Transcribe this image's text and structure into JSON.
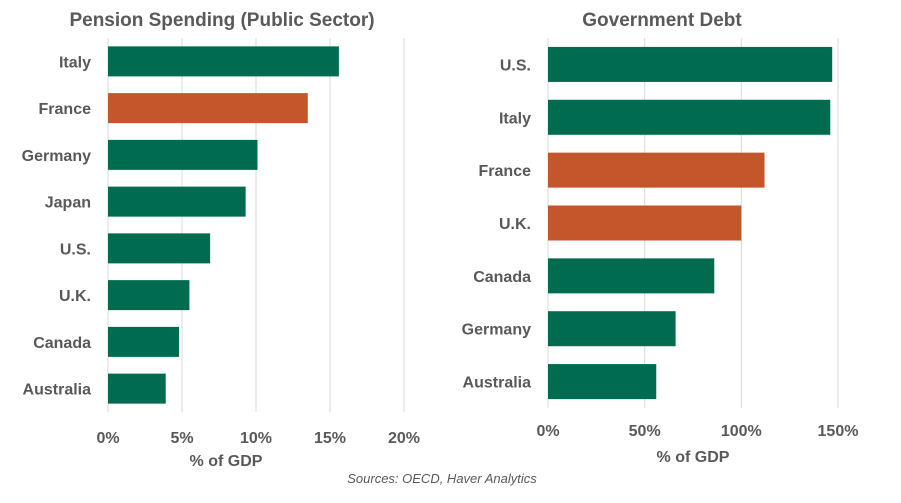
{
  "colors": {
    "default": "#006B4F",
    "highlight": "#C3562A",
    "grid": "#D9D9D9",
    "text": "#595959"
  },
  "source": "Sources: OECD, Haver Analytics",
  "chart_data": [
    {
      "type": "bar",
      "orientation": "horizontal",
      "title": "Pension Spending (Public Sector)",
      "xlabel": "% of GDP",
      "ylabel": "",
      "xlim": [
        0,
        20
      ],
      "tick_values": [
        0,
        5,
        10,
        15,
        20
      ],
      "tick_labels": [
        "0%",
        "5%",
        "10%",
        "15%",
        "20%"
      ],
      "categories": [
        "Italy",
        "France",
        "Germany",
        "Japan",
        "U.S.",
        "U.K.",
        "Canada",
        "Australia"
      ],
      "values": [
        15.6,
        13.5,
        10.1,
        9.3,
        6.9,
        5.5,
        4.8,
        3.9
      ],
      "highlight": [
        "France"
      ],
      "grid": true
    },
    {
      "type": "bar",
      "orientation": "horizontal",
      "title": "Government Debt",
      "xlabel": "% of GDP",
      "ylabel": "",
      "xlim": [
        0,
        150
      ],
      "tick_values": [
        0,
        50,
        100,
        150
      ],
      "tick_labels": [
        "0%",
        "50%",
        "100%",
        "150%"
      ],
      "categories": [
        "U.S.",
        "Italy",
        "France",
        "U.K.",
        "Canada",
        "Germany",
        "Australia"
      ],
      "values": [
        147,
        146,
        112,
        100,
        86,
        66,
        56
      ],
      "highlight": [
        "France",
        "U.K."
      ],
      "grid": true
    }
  ]
}
